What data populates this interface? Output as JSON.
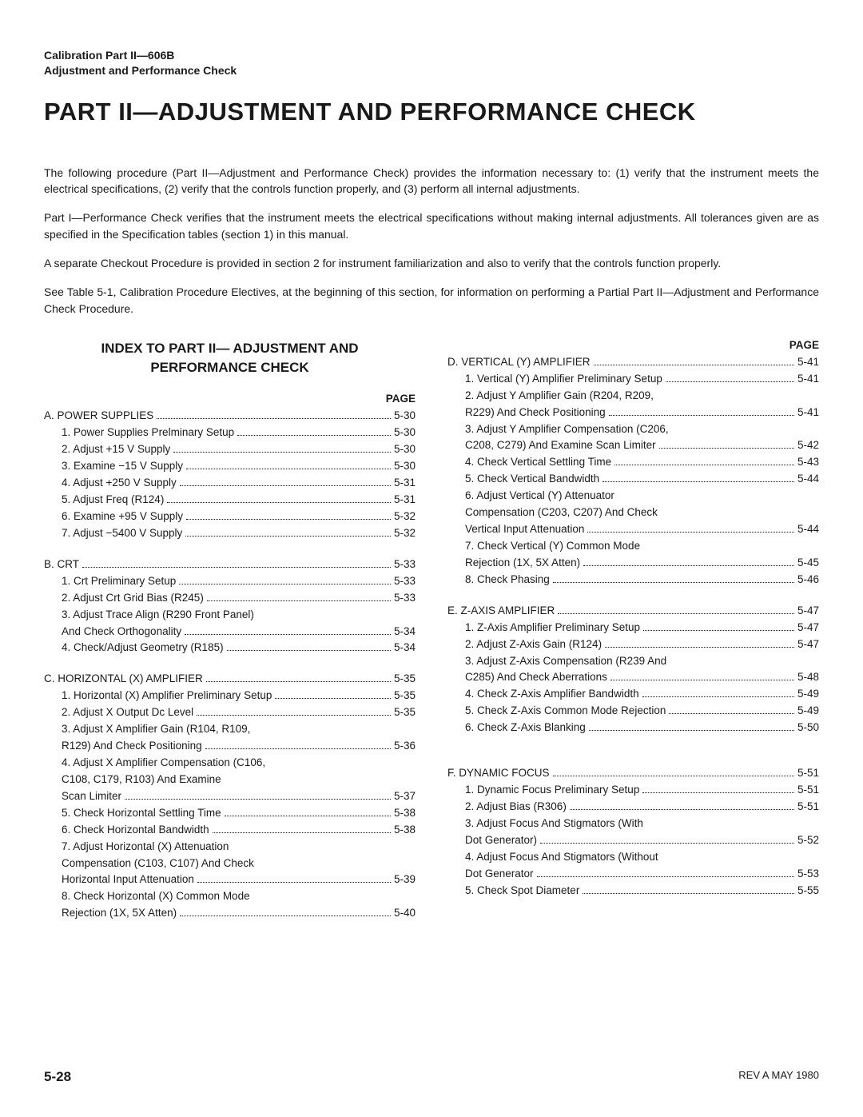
{
  "header": {
    "line1": "Calibration Part II—606B",
    "line2": "Adjustment and Performance Check"
  },
  "title": "PART II—ADJUSTMENT AND PERFORMANCE CHECK",
  "intro": [
    "The following procedure (Part II—Adjustment and Performance Check) provides the information necessary to: (1) verify that the instrument meets the electrical specifications, (2) verify that the controls function properly, and (3) perform all internal adjustments.",
    "Part I—Performance Check verifies that the instrument meets the electrical specifications without making internal adjustments. All tolerances given are as specified in the Specification tables (section 1) in this manual.",
    "A separate Checkout Procedure is provided in section 2 for instrument familiarization and also to verify that the controls function properly.",
    "See Table 5-1, Calibration Procedure Electives, at the beginning of this section, for information on performing a Partial Part II—Adjustment and Performance Check Procedure."
  ],
  "index_heading": "INDEX TO PART II— ADJUSTMENT AND PERFORMANCE CHECK",
  "page_label": "PAGE",
  "left": [
    {
      "type": "top",
      "text": "A. POWER SUPPLIES",
      "page": "5-30"
    },
    {
      "type": "sub",
      "text": "1. Power Supplies Prelminary Setup",
      "page": "5-30"
    },
    {
      "type": "sub",
      "text": "2. Adjust +15 V Supply",
      "page": "5-30"
    },
    {
      "type": "sub",
      "text": "3. Examine −15 V Supply",
      "page": "5-30"
    },
    {
      "type": "sub",
      "text": "4. Adjust +250 V Supply",
      "page": "5-31"
    },
    {
      "type": "sub",
      "text": "5. Adjust Freq (R124)",
      "page": "5-31"
    },
    {
      "type": "sub",
      "text": "6. Examine +95 V Supply",
      "page": "5-32"
    },
    {
      "type": "sub",
      "text": "7. Adjust −5400 V Supply",
      "page": "5-32"
    },
    {
      "type": "gap"
    },
    {
      "type": "top",
      "text": "B. CRT",
      "page": "5-33"
    },
    {
      "type": "sub",
      "text": "1. Crt Preliminary Setup",
      "page": "5-33"
    },
    {
      "type": "sub",
      "text": "2. Adjust Crt Grid Bias (R245)",
      "page": "5-33"
    },
    {
      "type": "cont",
      "text": "3. Adjust Trace Align (R290 Front Panel)"
    },
    {
      "type": "cont",
      "text": "And Check Orthogonality",
      "page": "5-34"
    },
    {
      "type": "sub",
      "text": "4. Check/Adjust Geometry (R185)",
      "page": "5-34"
    },
    {
      "type": "gap"
    },
    {
      "type": "top",
      "text": "C. HORIZONTAL (X) AMPLIFIER",
      "page": "5-35"
    },
    {
      "type": "sub",
      "text": "1. Horizontal (X) Amplifier Preliminary Setup",
      "page": "5-35"
    },
    {
      "type": "sub",
      "text": "2. Adjust X Output Dc Level",
      "page": "5-35"
    },
    {
      "type": "cont",
      "text": "3. Adjust X Amplifier Gain (R104, R109,"
    },
    {
      "type": "cont",
      "text": "R129) And Check Positioning",
      "page": "5-36"
    },
    {
      "type": "cont",
      "text": "4. Adjust X Amplifier Compensation (C106,"
    },
    {
      "type": "cont",
      "text": "C108, C179, R103) And Examine"
    },
    {
      "type": "cont",
      "text": "Scan Limiter",
      "page": "5-37"
    },
    {
      "type": "sub",
      "text": "5. Check Horizontal Settling Time",
      "page": "5-38"
    },
    {
      "type": "sub",
      "text": "6. Check Horizontal Bandwidth",
      "page": "5-38"
    },
    {
      "type": "cont",
      "text": "7. Adjust Horizontal (X) Attenuation"
    },
    {
      "type": "cont",
      "text": "Compensation (C103, C107) And Check"
    },
    {
      "type": "cont",
      "text": "Horizontal Input Attenuation",
      "page": "5-39"
    },
    {
      "type": "cont",
      "text": "8. Check Horizontal (X) Common Mode"
    },
    {
      "type": "cont",
      "text": "Rejection (1X, 5X Atten)",
      "page": "5-40"
    }
  ],
  "right": [
    {
      "type": "top",
      "text": "D. VERTICAL (Y) AMPLIFIER",
      "page": "5-41"
    },
    {
      "type": "sub",
      "text": "1. Vertical (Y) Amplifier Preliminary Setup",
      "page": "5-41"
    },
    {
      "type": "cont",
      "text": "2. Adjust Y Amplifier Gain (R204, R209,"
    },
    {
      "type": "cont",
      "text": "R229) And Check Positioning",
      "page": "5-41"
    },
    {
      "type": "cont",
      "text": "3. Adjust Y Amplifier Compensation (C206,"
    },
    {
      "type": "cont",
      "text": "C208, C279) And Examine Scan Limiter",
      "page": "5-42"
    },
    {
      "type": "sub",
      "text": "4. Check Vertical Settling Time",
      "page": "5-43"
    },
    {
      "type": "sub",
      "text": "5. Check Vertical Bandwidth",
      "page": "5-44"
    },
    {
      "type": "cont",
      "text": "6. Adjust Vertical (Y) Attenuator"
    },
    {
      "type": "cont",
      "text": "Compensation (C203, C207) And Check"
    },
    {
      "type": "cont",
      "text": "Vertical Input Attenuation",
      "page": "5-44"
    },
    {
      "type": "cont",
      "text": "7. Check Vertical (Y) Common Mode"
    },
    {
      "type": "cont",
      "text": "Rejection (1X, 5X Atten)",
      "page": "5-45"
    },
    {
      "type": "sub",
      "text": "8. Check Phasing",
      "page": "5-46"
    },
    {
      "type": "gap"
    },
    {
      "type": "top",
      "text": "E. Z-AXIS AMPLIFIER",
      "page": "5-47"
    },
    {
      "type": "sub",
      "text": "1. Z-Axis Amplifier Preliminary Setup",
      "page": "5-47"
    },
    {
      "type": "sub",
      "text": "2. Adjust Z-Axis Gain (R124)",
      "page": "5-47"
    },
    {
      "type": "cont",
      "text": "3. Adjust Z-Axis Compensation (R239 And"
    },
    {
      "type": "cont",
      "text": "C285) And Check Aberrations",
      "page": "5-48"
    },
    {
      "type": "sub",
      "text": "4. Check Z-Axis Amplifier Bandwidth",
      "page": "5-49"
    },
    {
      "type": "sub",
      "text": "5. Check Z-Axis Common Mode Rejection",
      "page": "5-49"
    },
    {
      "type": "sub",
      "text": "6. Check Z-Axis Blanking",
      "page": "5-50"
    },
    {
      "type": "gap"
    },
    {
      "type": "gap"
    },
    {
      "type": "top",
      "text": "F. DYNAMIC FOCUS",
      "page": "5-51"
    },
    {
      "type": "sub",
      "text": "1. Dynamic Focus Preliminary Setup",
      "page": "5-51"
    },
    {
      "type": "sub",
      "text": "2. Adjust Bias (R306)",
      "page": "5-51"
    },
    {
      "type": "cont",
      "text": "3. Adjust Focus And Stigmators (With"
    },
    {
      "type": "cont",
      "text": "Dot Generator)",
      "page": "5-52"
    },
    {
      "type": "cont",
      "text": "4. Adjust Focus And Stigmators (Without"
    },
    {
      "type": "cont",
      "text": "Dot Generator",
      "page": "5-53"
    },
    {
      "type": "sub",
      "text": "5. Check Spot Diameter",
      "page": "5-55"
    }
  ],
  "footer": {
    "page_number": "5-28",
    "rev": "REV A MAY 1980"
  }
}
